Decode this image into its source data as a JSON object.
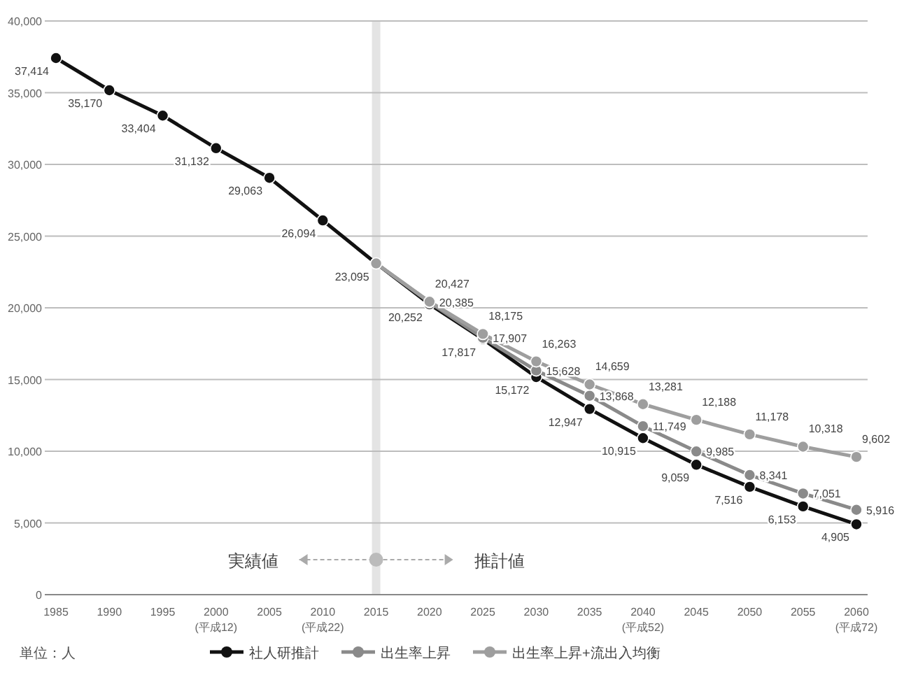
{
  "chart_data": {
    "type": "line",
    "categories": [
      "1985",
      "1990",
      "1995",
      "2000\n(平成12)",
      "2005",
      "2010\n(平成22)",
      "2015",
      "2020",
      "2025",
      "2030",
      "2035",
      "2040\n(平成52)",
      "2045",
      "2050",
      "2055",
      "2060\n(平成72)"
    ],
    "series": [
      {
        "name": "社人研推計",
        "color": "#111111",
        "values": [
          37414,
          35170,
          33404,
          31132,
          29063,
          26094,
          23095,
          20252,
          17817,
          15172,
          12947,
          10915,
          9059,
          7516,
          6153,
          4905
        ],
        "value_labels": [
          "37,414",
          "35,170",
          "33,404",
          "31,132",
          "29,063",
          "26,094",
          "23,095",
          "20,252",
          "17,817",
          "15,172",
          "12,947",
          "10,915",
          "9,059",
          "7,516",
          "6,153",
          "4,905"
        ]
      },
      {
        "name": "出生率上昇",
        "color": "#8a8a8a",
        "values": [
          null,
          null,
          null,
          null,
          null,
          null,
          23095,
          20385,
          17907,
          15628,
          13868,
          11749,
          9985,
          8341,
          7051,
          5916
        ],
        "value_labels": [
          null,
          null,
          null,
          null,
          null,
          null,
          null,
          "20,385",
          "17,907",
          "15,628",
          "13,868",
          "11,749",
          "9,985",
          "8,341",
          "7,051",
          "5,916"
        ]
      },
      {
        "name": "出生率上昇+流出入均衡",
        "color": "#9e9e9e",
        "values": [
          null,
          null,
          null,
          null,
          null,
          null,
          23095,
          20427,
          18175,
          16263,
          14659,
          13281,
          12188,
          11178,
          10318,
          9602
        ],
        "value_labels": [
          null,
          null,
          null,
          null,
          null,
          null,
          null,
          "20,427",
          "18,175",
          "16,263",
          "14,659",
          "13,281",
          "12,188",
          "11,178",
          "10,318",
          "9,602"
        ]
      }
    ],
    "ylim": [
      0,
      40000
    ],
    "yticks": [
      0,
      {
        "value": 5000,
        "label": "5,000"
      },
      {
        "value": 10000,
        "label": "10,000"
      },
      {
        "value": 15000,
        "label": "15,000"
      },
      {
        "value": 20000,
        "label": "20,000"
      },
      {
        "value": 25000,
        "label": "25,000"
      },
      {
        "value": 30000,
        "label": "30,000"
      },
      {
        "value": 35000,
        "label": "35,000"
      },
      {
        "value": 40000,
        "label": "40,000"
      }
    ],
    "grid": "y",
    "legend": "bottom",
    "marker": "circle",
    "line_style": "solid",
    "ref_lines": [
      {
        "axis": "x",
        "value": "2015",
        "color": "#e4e4e4"
      }
    ],
    "annotations": [
      "実績値",
      "推計値",
      "単位：人"
    ]
  }
}
